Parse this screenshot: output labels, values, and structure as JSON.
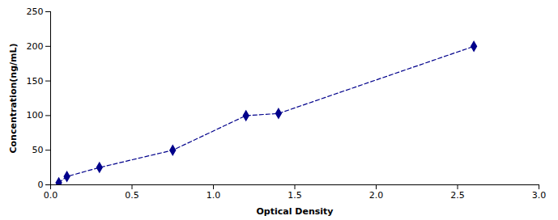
{
  "chart_data": {
    "type": "line",
    "x": [
      0.05,
      0.1,
      0.3,
      0.75,
      1.2,
      1.4,
      2.6
    ],
    "values": [
      3,
      12,
      25,
      50,
      100,
      103,
      200
    ],
    "xlabel": "Optical Density",
    "ylabel": "Concentration(ng/mL)",
    "xlim": [
      0,
      3
    ],
    "ylim": [
      0,
      250
    ],
    "xticks": [
      {
        "value": 0,
        "label": "0.0"
      },
      0.5,
      {
        "value": 1,
        "label": "1.0"
      },
      1.5,
      {
        "value": 2,
        "label": "2.0"
      },
      2.5,
      {
        "value": 3,
        "label": "3.0"
      }
    ],
    "yticks": [
      0,
      50,
      100,
      150,
      200,
      250
    ],
    "color": "#00008B",
    "marker": "diamond",
    "line_style": "dashed",
    "grid": false
  }
}
